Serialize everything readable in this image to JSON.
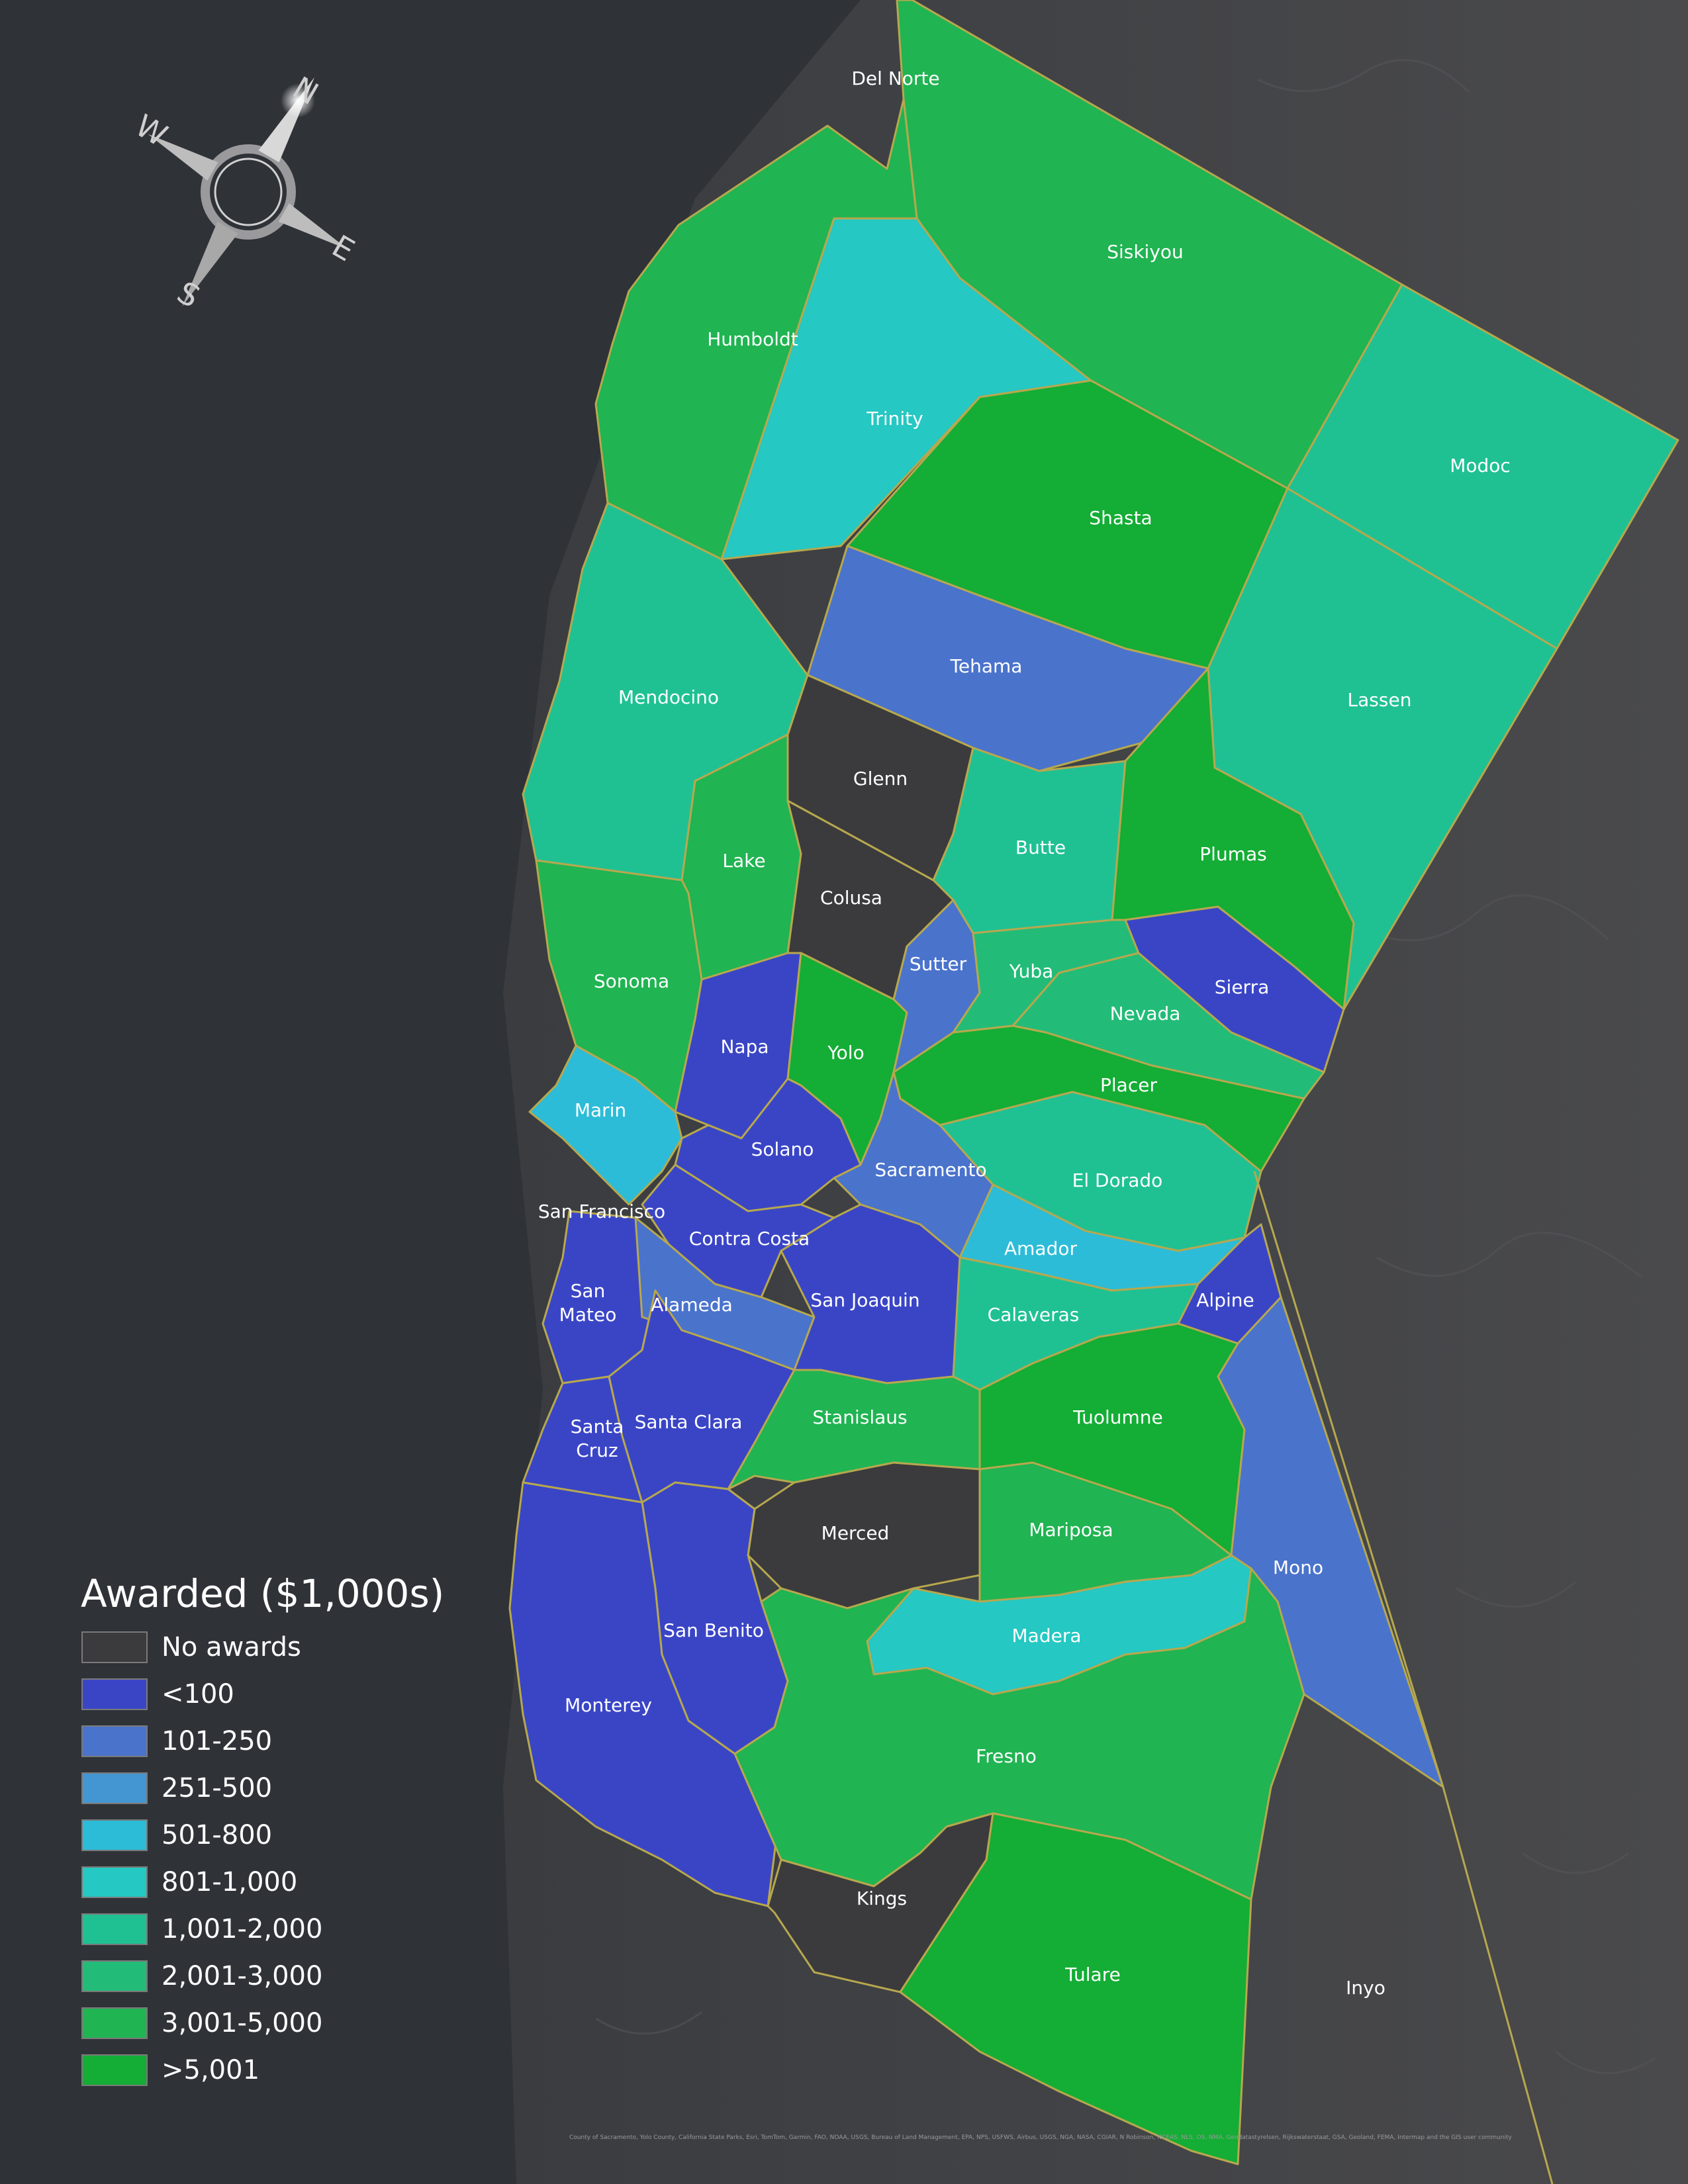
{
  "legend": {
    "title": "Awarded ($1,000s)",
    "bins": [
      {
        "label": "No awards",
        "color": "#3b3b3d"
      },
      {
        "label": "<100",
        "color": "#3a45c6"
      },
      {
        "label": "101-250",
        "color": "#4a73cc"
      },
      {
        "label": "251-500",
        "color": "#4496d2"
      },
      {
        "label": "501-800",
        "color": "#2cbcd8"
      },
      {
        "label": "801-1,000",
        "color": "#25c8c2"
      },
      {
        "label": "1,001-2,000",
        "color": "#1fc193"
      },
      {
        "label": "2,001-3,000",
        "color": "#22bc78"
      },
      {
        "label": "3,001-5,000",
        "color": "#20b452"
      },
      {
        "label": ">5,001",
        "color": "#14ad35"
      }
    ]
  },
  "compass": {
    "n": "N",
    "e": "E",
    "s": "S",
    "w": "W"
  },
  "counties": [
    {
      "name": "Del Norte",
      "bin": null
    },
    {
      "name": "Siskiyou",
      "bin": 8
    },
    {
      "name": "Modoc",
      "bin": 6
    },
    {
      "name": "Humboldt",
      "bin": 8
    },
    {
      "name": "Trinity",
      "bin": 5
    },
    {
      "name": "Shasta",
      "bin": 9
    },
    {
      "name": "Lassen",
      "bin": 6
    },
    {
      "name": "Tehama",
      "bin": 2
    },
    {
      "name": "Mendocino",
      "bin": 6
    },
    {
      "name": "Glenn",
      "bin": 0
    },
    {
      "name": "Butte",
      "bin": 6
    },
    {
      "name": "Plumas",
      "bin": 9
    },
    {
      "name": "Lake",
      "bin": 8
    },
    {
      "name": "Colusa",
      "bin": 0
    },
    {
      "name": "Sutter",
      "bin": 2
    },
    {
      "name": "Yuba",
      "bin": 7
    },
    {
      "name": "Sierra",
      "bin": 1
    },
    {
      "name": "Nevada",
      "bin": 7
    },
    {
      "name": "Sonoma",
      "bin": 8
    },
    {
      "name": "Napa",
      "bin": 1
    },
    {
      "name": "Yolo",
      "bin": 9
    },
    {
      "name": "Placer",
      "bin": 9
    },
    {
      "name": "Marin",
      "bin": 4
    },
    {
      "name": "Solano",
      "bin": 1
    },
    {
      "name": "Sacramento",
      "bin": 2
    },
    {
      "name": "El Dorado",
      "bin": 6
    },
    {
      "name": "San Francisco",
      "bin": null
    },
    {
      "name": "Contra Costa",
      "bin": 1
    },
    {
      "name": "Amador",
      "bin": 4
    },
    {
      "name": "San Mateo",
      "bin": 1
    },
    {
      "name": "Alameda",
      "bin": 2
    },
    {
      "name": "San Joaquin",
      "bin": 1
    },
    {
      "name": "Calaveras",
      "bin": 6
    },
    {
      "name": "Alpine",
      "bin": 1
    },
    {
      "name": "Santa Cruz",
      "bin": 1
    },
    {
      "name": "Santa Clara",
      "bin": 1
    },
    {
      "name": "Stanislaus",
      "bin": 8
    },
    {
      "name": "Tuolumne",
      "bin": 9
    },
    {
      "name": "Mono",
      "bin": 2
    },
    {
      "name": "Merced",
      "bin": 0
    },
    {
      "name": "Mariposa",
      "bin": 8
    },
    {
      "name": "San Benito",
      "bin": 1
    },
    {
      "name": "Madera",
      "bin": 5
    },
    {
      "name": "Monterey",
      "bin": 1
    },
    {
      "name": "Fresno",
      "bin": 8
    },
    {
      "name": "Kings",
      "bin": 0
    },
    {
      "name": "Tulare",
      "bin": 9
    },
    {
      "name": "Inyo",
      "bin": null
    }
  ],
  "credits": "County of Sacramento, Yolo County, California State Parks, Esri, TomTom, Garmin, FAO, NOAA, USGS, Bureau of Land Management, EPA, NPS, USFWS, Airbus, USGS, NGA, NASA, CGIAR, N Robinson, NCEAS, NLS, OS, NMA, Geodatastyrelsen, Rijkswaterstaat, GSA, Geoland, FEMA, Intermap and the GIS user community"
}
